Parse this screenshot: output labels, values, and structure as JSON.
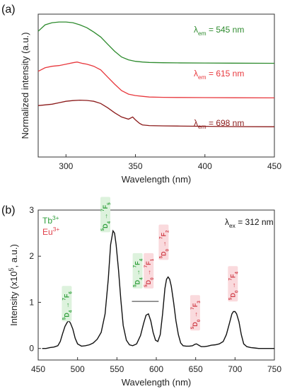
{
  "chart_data": [
    {
      "type": "line",
      "panel_label": "(a)",
      "xlabel": "Wavelength (nm)",
      "ylabel": "Normalized intensity (a.u.)",
      "xlim": [
        280,
        450
      ],
      "xticks": [
        300,
        350,
        400,
        450
      ],
      "yticks": [],
      "series": [
        {
          "name": "λem = 545 nm",
          "label_parts": [
            "λ",
            "em",
            " = 545 nm"
          ],
          "color": "#2e8b2e",
          "x": [
            280,
            285,
            290,
            295,
            300,
            305,
            310,
            315,
            320,
            325,
            330,
            335,
            340,
            345,
            350,
            355,
            360,
            370,
            380,
            400,
            420,
            450
          ],
          "y": [
            0.88,
            0.925,
            0.94,
            0.945,
            0.945,
            0.94,
            0.925,
            0.905,
            0.875,
            0.84,
            0.79,
            0.74,
            0.7,
            0.68,
            0.67,
            0.665,
            0.662,
            0.66,
            0.659,
            0.658,
            0.657,
            0.656
          ]
        },
        {
          "name": "λem = 615 nm",
          "label_parts": [
            "λ",
            "em",
            " = 615 nm"
          ],
          "color": "#e8383d",
          "x": [
            280,
            285,
            290,
            295,
            300,
            305,
            308,
            312,
            315,
            320,
            325,
            330,
            335,
            340,
            345,
            350,
            355,
            360,
            370,
            380,
            400,
            420,
            450
          ],
          "y": [
            0.6,
            0.625,
            0.635,
            0.64,
            0.65,
            0.66,
            0.665,
            0.655,
            0.65,
            0.635,
            0.61,
            0.56,
            0.51,
            0.465,
            0.44,
            0.43,
            0.425,
            0.42,
            0.418,
            0.417,
            0.416,
            0.415,
            0.414
          ]
        },
        {
          "name": "λem = 698 nm",
          "label_parts": [
            "λ",
            "em",
            " = 698 nm"
          ],
          "color": "#8b1a1a",
          "x": [
            280,
            285,
            290,
            295,
            300,
            305,
            310,
            315,
            320,
            325,
            330,
            335,
            340,
            345,
            348,
            350,
            353,
            355,
            360,
            370,
            380,
            400,
            420,
            450
          ],
          "y": [
            0.36,
            0.365,
            0.37,
            0.38,
            0.39,
            0.395,
            0.398,
            0.396,
            0.39,
            0.375,
            0.345,
            0.31,
            0.28,
            0.265,
            0.28,
            0.26,
            0.235,
            0.225,
            0.22,
            0.218,
            0.217,
            0.215,
            0.213,
            0.212
          ]
        }
      ]
    },
    {
      "type": "line",
      "panel_label": "(b)",
      "xlabel": "Wavelength (nm)",
      "ylabel_parts": [
        "Intensity (x10",
        "5",
        ", a.u.)"
      ],
      "xlim": [
        450,
        750
      ],
      "ylim": [
        -0.25,
        3.0
      ],
      "xticks": [
        450,
        500,
        550,
        600,
        650,
        700,
        750
      ],
      "yticks": [
        0,
        1,
        2,
        3
      ],
      "legend": {
        "position": "top-left",
        "entries": [
          {
            "parts": [
              "Tb",
              "3+"
            ],
            "color": "#2e9e3a"
          },
          {
            "parts": [
              "Eu",
              "3+"
            ],
            "color": "#e0404a"
          }
        ]
      },
      "annotation_parts": [
        "λ",
        "ex",
        " = 312 nm"
      ],
      "transitions": [
        {
          "parts": [
            "5",
            "D",
            "4",
            " → ",
            "7",
            "F",
            "6"
          ],
          "color": "#2e9e3a",
          "bg": "#ddf2dd",
          "x": 489,
          "y": 0.62
        },
        {
          "parts": [
            "5",
            "D",
            "4",
            " → ",
            "7",
            "F",
            "5"
          ],
          "color": "#2e9e3a",
          "bg": "#ddf2dd",
          "x": 538,
          "y": 2.55
        },
        {
          "parts": [
            "5",
            "D",
            "4",
            " → ",
            "7",
            "F",
            "4"
          ],
          "color": "#2e9e3a",
          "bg": "#ddf2dd",
          "x": 579,
          "y": 1.33
        },
        {
          "parts": [
            "5",
            "D",
            "0",
            " → ",
            "7",
            "F",
            "1"
          ],
          "color": "#d0404a",
          "bg": "#fadadd",
          "x": 593,
          "y": 1.33
        },
        {
          "parts": [
            "5",
            "D",
            "0",
            " → ",
            "7",
            "F",
            "2"
          ],
          "color": "#d0404a",
          "bg": "#fadadd",
          "x": 612,
          "y": 1.95
        },
        {
          "parts": [
            "5",
            "D",
            "0",
            " → ",
            "7",
            "F",
            "3"
          ],
          "color": "#d0404a",
          "bg": "#fadadd",
          "x": 652,
          "y": 0.42
        },
        {
          "parts": [
            "5",
            "D",
            "0",
            " → ",
            "7",
            "F",
            "4"
          ],
          "color": "#d0404a",
          "bg": "#fadadd",
          "x": 700,
          "y": 1.05
        }
      ],
      "series": [
        {
          "color": "#111111",
          "x": [
            455,
            460,
            465,
            470,
            475,
            478,
            481,
            484,
            487,
            489,
            491,
            494,
            497,
            500,
            505,
            510,
            515,
            520,
            525,
            530,
            535,
            539,
            542,
            545,
            547,
            549,
            552,
            555,
            558,
            562,
            566,
            570,
            575,
            580,
            584,
            587,
            590,
            593,
            596,
            599,
            602,
            605,
            608,
            611,
            613,
            615,
            617,
            619,
            622,
            625,
            628,
            631,
            634,
            638,
            642,
            646,
            649,
            651,
            654,
            657,
            661,
            665,
            670,
            675,
            680,
            685,
            689,
            693,
            696,
            698,
            700,
            702,
            705,
            708,
            711,
            715,
            720,
            725,
            730,
            735,
            740,
            745,
            750
          ],
          "y": [
            0.0,
            0.0,
            0.02,
            0.03,
            0.06,
            0.15,
            0.32,
            0.48,
            0.57,
            0.6,
            0.55,
            0.42,
            0.22,
            0.1,
            0.05,
            0.06,
            0.08,
            0.12,
            0.2,
            0.35,
            0.75,
            1.5,
            2.25,
            2.55,
            2.5,
            2.25,
            1.7,
            1.05,
            0.5,
            0.18,
            0.08,
            0.06,
            0.1,
            0.28,
            0.55,
            0.72,
            0.75,
            0.6,
            0.35,
            0.18,
            0.15,
            0.3,
            0.75,
            1.3,
            1.5,
            1.55,
            1.5,
            1.35,
            1.0,
            0.6,
            0.3,
            0.12,
            0.06,
            0.05,
            0.05,
            0.06,
            0.09,
            0.1,
            0.07,
            0.04,
            0.04,
            0.05,
            0.07,
            0.08,
            0.1,
            0.15,
            0.3,
            0.55,
            0.75,
            0.8,
            0.8,
            0.75,
            0.58,
            0.3,
            0.1,
            0.04,
            0.02,
            0.01,
            0.0,
            0.0,
            0.0,
            0.0,
            0.0
          ]
        }
      ]
    }
  ]
}
